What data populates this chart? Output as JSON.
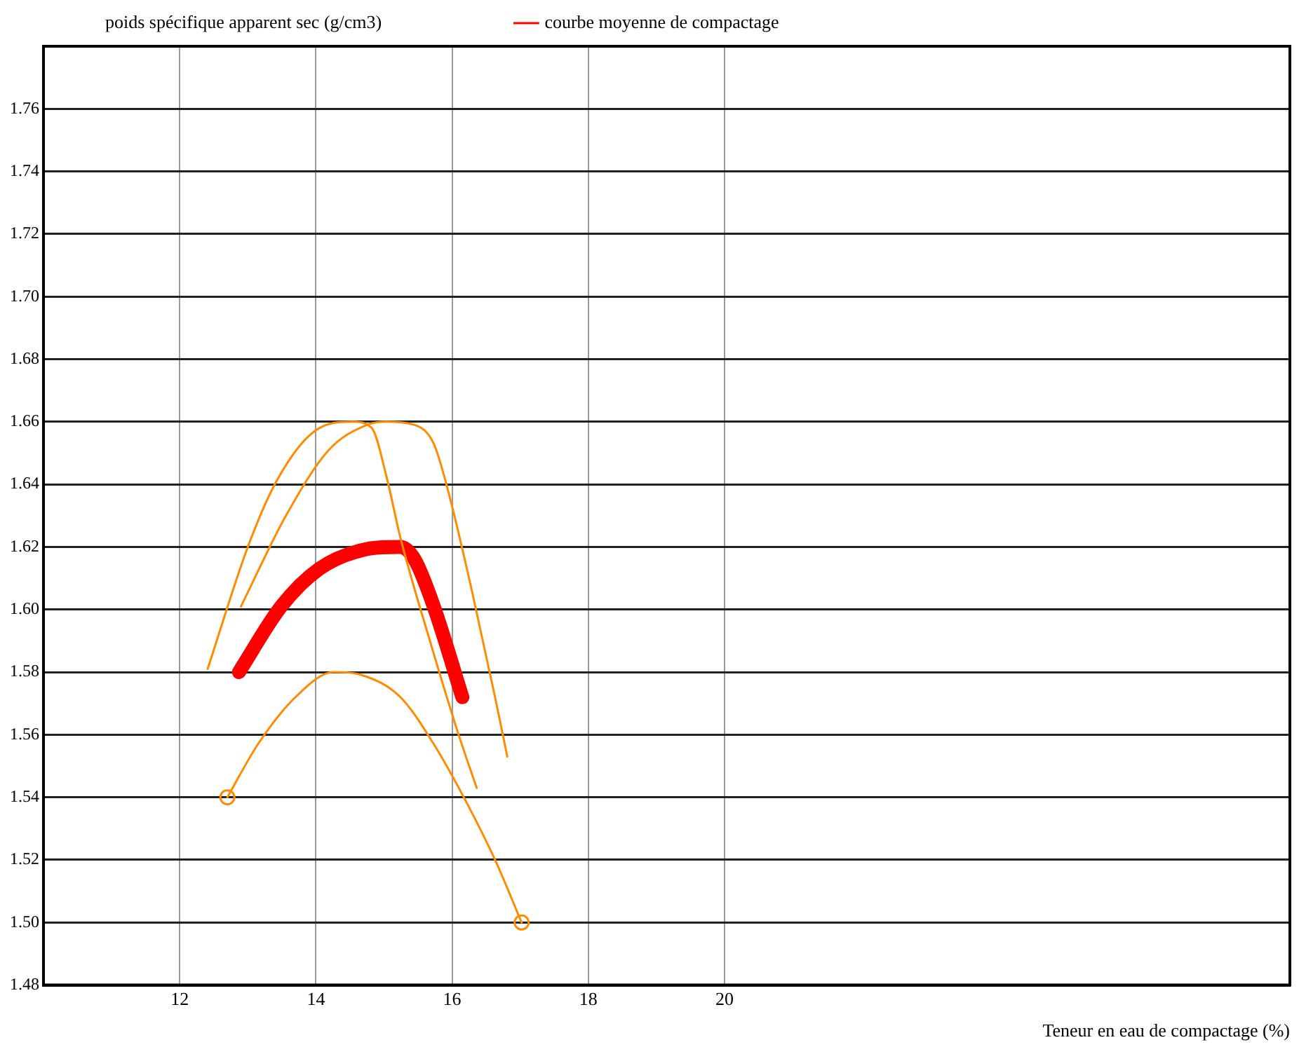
{
  "chart_data": {
    "type": "line",
    "ylabel": "poids spécifique apparent sec (g/cm3)",
    "xlabel": "Teneur en eau de compactage (%)",
    "xlim": [
      10,
      28.3
    ],
    "xticks": [
      12,
      14,
      16,
      18,
      20
    ],
    "ylim": [
      1.48,
      1.78
    ],
    "yticks": [
      1.48,
      {
        "value": 1.5,
        "label": "1.50"
      },
      1.52,
      1.54,
      1.56,
      1.58,
      {
        "value": 1.6,
        "label": "1.60"
      },
      1.62,
      1.64,
      1.66,
      1.68,
      {
        "value": 1.7,
        "label": "1.70"
      },
      1.72,
      1.74,
      1.76
    ],
    "grid": true,
    "legend": "top",
    "marker": "none",
    "line_style": "solid",
    "series": [
      {
        "color": "#ff8c00",
        "x": [
          12.41,
          13.0,
          13.42,
          13.98,
          14.54,
          14.82,
          15.03,
          15.24,
          15.66,
          16.08,
          16.36
        ],
        "values": [
          1.581,
          1.62,
          1.641,
          1.657,
          1.66,
          1.658,
          1.643,
          1.623,
          1.591,
          1.561,
          1.543
        ]
      },
      {
        "color": "#ff8c00",
        "x": [
          12.9,
          13.56,
          14.19,
          14.75,
          15.03,
          15.45,
          15.73,
          15.94,
          16.29,
          16.63,
          16.81
        ],
        "values": [
          1.601,
          1.63,
          1.651,
          1.659,
          1.66,
          1.659,
          1.653,
          1.638,
          1.606,
          1.572,
          1.553
        ]
      },
      {
        "color": "#ff8c00",
        "x": [
          12.7,
          13.15,
          13.7,
          14.26,
          14.68,
          15.24,
          15.73,
          16.22,
          16.63,
          17.02
        ],
        "values": [
          1.54,
          1.557,
          1.572,
          1.58,
          1.579,
          1.572,
          1.557,
          1.538,
          1.52,
          1.5
        ]
      },
      {
        "type": "scatter",
        "color": "#ff8c00",
        "marker": "circle",
        "x": [
          12.7,
          17.02
        ],
        "values": [
          1.54,
          1.5
        ]
      },
      {
        "name": "courbe moyenne de compactage",
        "color": "#ff0000",
        "x": [
          12.87,
          13.49,
          14.05,
          14.68,
          15.24,
          15.45,
          15.73,
          16.15
        ],
        "values": [
          1.58,
          1.601,
          1.613,
          1.619,
          1.62,
          1.616,
          1.601,
          1.572
        ]
      }
    ]
  }
}
